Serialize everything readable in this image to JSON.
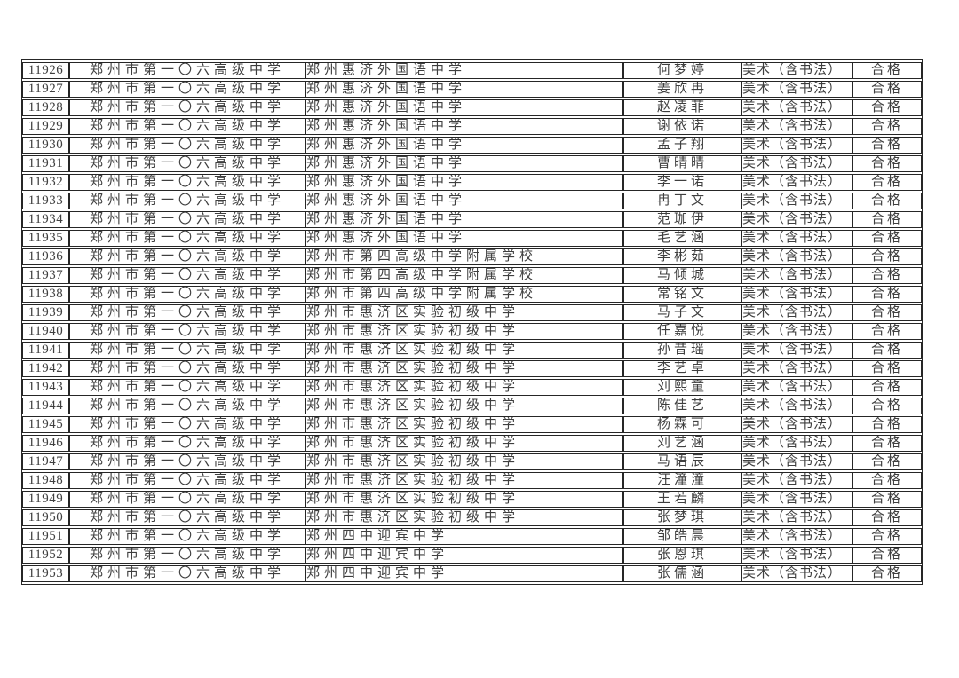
{
  "colors": {
    "text": "#3f3f3f",
    "border": "#262626",
    "background": "#ffffff"
  },
  "table": {
    "subject_label": "美术（含书法）",
    "result_label": "合格",
    "rows": [
      {
        "id": "11926",
        "enroll_school": "郑州市第一〇六高级中学",
        "graduate_school": "郑州惠济外国语中学",
        "student": "何梦婷",
        "subject": "美术（含书法）",
        "result": "合格"
      },
      {
        "id": "11927",
        "enroll_school": "郑州市第一〇六高级中学",
        "graduate_school": "郑州惠济外国语中学",
        "student": "姜欣冉",
        "subject": "美术（含书法）",
        "result": "合格"
      },
      {
        "id": "11928",
        "enroll_school": "郑州市第一〇六高级中学",
        "graduate_school": "郑州惠济外国语中学",
        "student": "赵凌菲",
        "subject": "美术（含书法）",
        "result": "合格"
      },
      {
        "id": "11929",
        "enroll_school": "郑州市第一〇六高级中学",
        "graduate_school": "郑州惠济外国语中学",
        "student": "谢依诺",
        "subject": "美术（含书法）",
        "result": "合格"
      },
      {
        "id": "11930",
        "enroll_school": "郑州市第一〇六高级中学",
        "graduate_school": "郑州惠济外国语中学",
        "student": "孟子翔",
        "subject": "美术（含书法）",
        "result": "合格"
      },
      {
        "id": "11931",
        "enroll_school": "郑州市第一〇六高级中学",
        "graduate_school": "郑州惠济外国语中学",
        "student": "曹晴晴",
        "subject": "美术（含书法）",
        "result": "合格"
      },
      {
        "id": "11932",
        "enroll_school": "郑州市第一〇六高级中学",
        "graduate_school": "郑州惠济外国语中学",
        "student": "李一诺",
        "subject": "美术（含书法）",
        "result": "合格"
      },
      {
        "id": "11933",
        "enroll_school": "郑州市第一〇六高级中学",
        "graduate_school": "郑州惠济外国语中学",
        "student": "冉丁文",
        "subject": "美术（含书法）",
        "result": "合格"
      },
      {
        "id": "11934",
        "enroll_school": "郑州市第一〇六高级中学",
        "graduate_school": "郑州惠济外国语中学",
        "student": "范珈伊",
        "subject": "美术（含书法）",
        "result": "合格"
      },
      {
        "id": "11935",
        "enroll_school": "郑州市第一〇六高级中学",
        "graduate_school": "郑州惠济外国语中学",
        "student": "毛艺涵",
        "subject": "美术（含书法）",
        "result": "合格"
      },
      {
        "id": "11936",
        "enroll_school": "郑州市第一〇六高级中学",
        "graduate_school": "郑州市第四高级中学附属学校",
        "student": "李彬茹",
        "subject": "美术（含书法）",
        "result": "合格"
      },
      {
        "id": "11937",
        "enroll_school": "郑州市第一〇六高级中学",
        "graduate_school": "郑州市第四高级中学附属学校",
        "student": "马倾城",
        "subject": "美术（含书法）",
        "result": "合格"
      },
      {
        "id": "11938",
        "enroll_school": "郑州市第一〇六高级中学",
        "graduate_school": "郑州市第四高级中学附属学校",
        "student": "常铭文",
        "subject": "美术（含书法）",
        "result": "合格"
      },
      {
        "id": "11939",
        "enroll_school": "郑州市第一〇六高级中学",
        "graduate_school": "郑州市惠济区实验初级中学",
        "student": "马子文",
        "subject": "美术（含书法）",
        "result": "合格"
      },
      {
        "id": "11940",
        "enroll_school": "郑州市第一〇六高级中学",
        "graduate_school": "郑州市惠济区实验初级中学",
        "student": "任嘉悦",
        "subject": "美术（含书法）",
        "result": "合格"
      },
      {
        "id": "11941",
        "enroll_school": "郑州市第一〇六高级中学",
        "graduate_school": "郑州市惠济区实验初级中学",
        "student": "孙昔瑶",
        "subject": "美术（含书法）",
        "result": "合格"
      },
      {
        "id": "11942",
        "enroll_school": "郑州市第一〇六高级中学",
        "graduate_school": "郑州市惠济区实验初级中学",
        "student": "李艺卓",
        "subject": "美术（含书法）",
        "result": "合格"
      },
      {
        "id": "11943",
        "enroll_school": "郑州市第一〇六高级中学",
        "graduate_school": "郑州市惠济区实验初级中学",
        "student": "刘熙童",
        "subject": "美术（含书法）",
        "result": "合格"
      },
      {
        "id": "11944",
        "enroll_school": "郑州市第一〇六高级中学",
        "graduate_school": "郑州市惠济区实验初级中学",
        "student": "陈佳艺",
        "subject": "美术（含书法）",
        "result": "合格"
      },
      {
        "id": "11945",
        "enroll_school": "郑州市第一〇六高级中学",
        "graduate_school": "郑州市惠济区实验初级中学",
        "student": "杨霖可",
        "subject": "美术（含书法）",
        "result": "合格"
      },
      {
        "id": "11946",
        "enroll_school": "郑州市第一〇六高级中学",
        "graduate_school": "郑州市惠济区实验初级中学",
        "student": "刘艺涵",
        "subject": "美术（含书法）",
        "result": "合格"
      },
      {
        "id": "11947",
        "enroll_school": "郑州市第一〇六高级中学",
        "graduate_school": "郑州市惠济区实验初级中学",
        "student": "马语辰",
        "subject": "美术（含书法）",
        "result": "合格"
      },
      {
        "id": "11948",
        "enroll_school": "郑州市第一〇六高级中学",
        "graduate_school": "郑州市惠济区实验初级中学",
        "student": "汪潼潼",
        "subject": "美术（含书法）",
        "result": "合格"
      },
      {
        "id": "11949",
        "enroll_school": "郑州市第一〇六高级中学",
        "graduate_school": "郑州市惠济区实验初级中学",
        "student": "王若麟",
        "subject": "美术（含书法）",
        "result": "合格"
      },
      {
        "id": "11950",
        "enroll_school": "郑州市第一〇六高级中学",
        "graduate_school": "郑州市惠济区实验初级中学",
        "student": "张梦琪",
        "subject": "美术（含书法）",
        "result": "合格"
      },
      {
        "id": "11951",
        "enroll_school": "郑州市第一〇六高级中学",
        "graduate_school": "郑州四中迎宾中学",
        "student": "邹皓晨",
        "subject": "美术（含书法）",
        "result": "合格"
      },
      {
        "id": "11952",
        "enroll_school": "郑州市第一〇六高级中学",
        "graduate_school": "郑州四中迎宾中学",
        "student": "张恩琪",
        "subject": "美术（含书法）",
        "result": "合格"
      },
      {
        "id": "11953",
        "enroll_school": "郑州市第一〇六高级中学",
        "graduate_school": "郑州四中迎宾中学",
        "student": "张儒涵",
        "subject": "美术（含书法）",
        "result": "合格"
      }
    ]
  }
}
